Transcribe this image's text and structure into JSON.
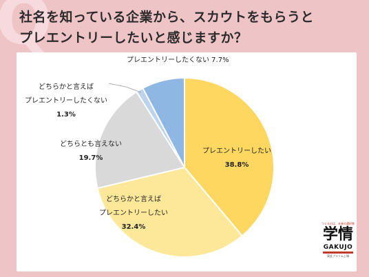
{
  "title_lines": [
    "社名を知っている企業から、スカウトをもらうと",
    "プレエントリーしたいと感じますか？"
  ],
  "decor": {
    "q_letter": "Q"
  },
  "chart_data": {
    "type": "pie",
    "title": "社名を知っている企業から、スカウトをもらうとプレエントリーしたいと感じますか？",
    "start_angle_deg": 0,
    "direction": "clockwise",
    "slices": [
      {
        "label_lines": [
          "プレエントリーしたい"
        ],
        "value": 38.8,
        "value_label": "38.8%",
        "color": "#fdd75f"
      },
      {
        "label_lines": [
          "どちらかと言えば",
          "プレエントリーしたい"
        ],
        "value": 32.4,
        "value_label": "32.4%",
        "color": "#fde89a"
      },
      {
        "label_lines": [
          "どちらとも言えない"
        ],
        "value": 19.7,
        "value_label": "19.7%",
        "color": "#d9d9d9"
      },
      {
        "label_lines": [
          "どちらかと言えば",
          "プレエントリーしたくない"
        ],
        "value": 1.3,
        "value_label": "1.3%",
        "color": "#bcd4ec"
      },
      {
        "label_lines": [
          "プレエントリーしたくない 7.7%"
        ],
        "value": 7.7,
        "value_label": "",
        "color": "#8fb7e3"
      }
    ]
  },
  "logo": {
    "tagline": "つくるのは、未来の選択肢",
    "main": "学情",
    "english": "GAKUJO",
    "sub": "東証プライム上場"
  }
}
